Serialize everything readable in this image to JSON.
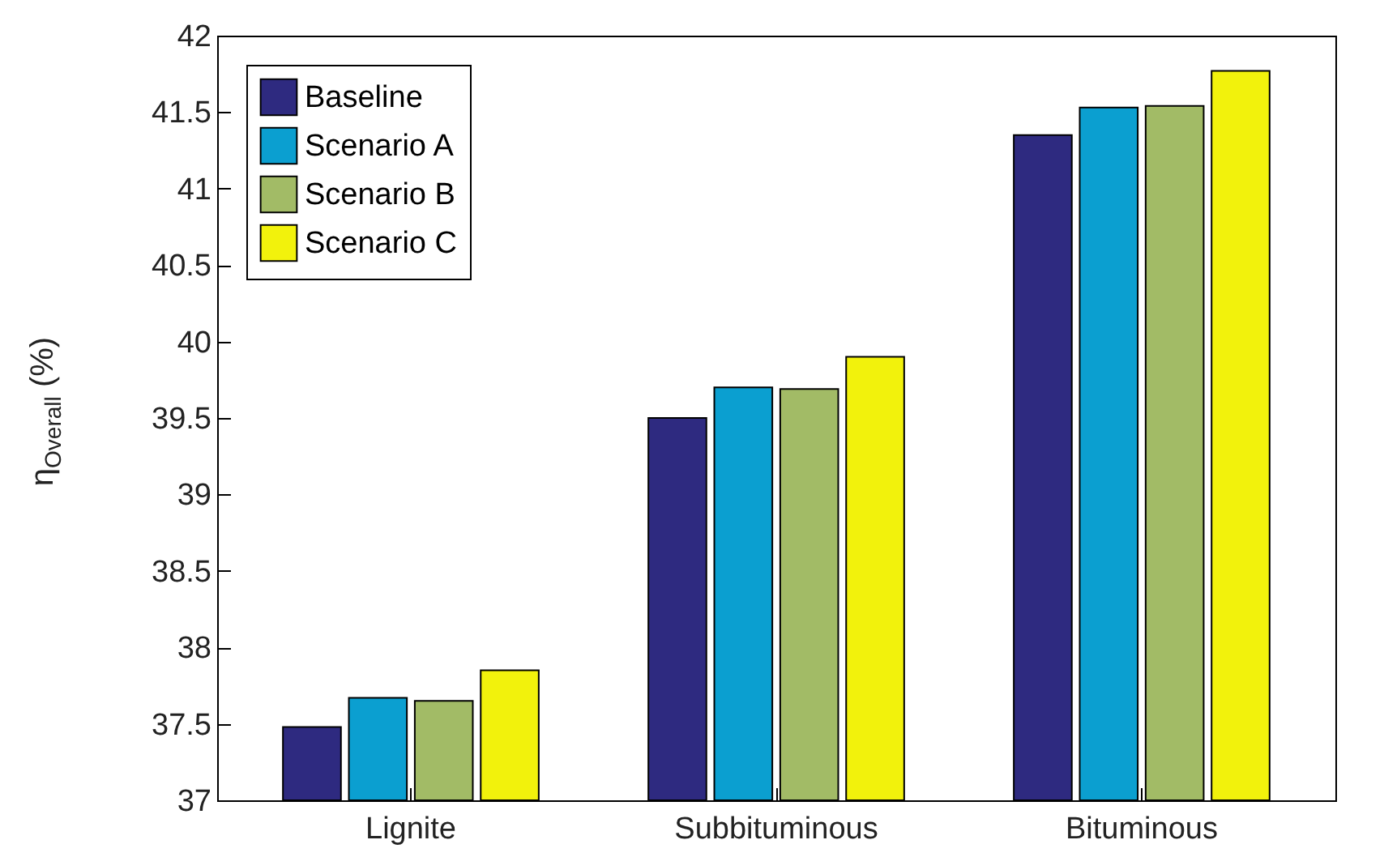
{
  "chart_data": {
    "type": "bar",
    "ylabel": "η$_{Overall}$ (%)",
    "categories": [
      "Lignite",
      "Subbituminous",
      "Bituminous"
    ],
    "series": [
      {
        "name": "Baseline",
        "color": "#2e2a80",
        "values": [
          37.48,
          39.5,
          41.35
        ]
      },
      {
        "name": "Scenario A",
        "color": "#0b9fd0",
        "values": [
          37.67,
          39.7,
          41.53
        ]
      },
      {
        "name": "Scenario B",
        "color": "#a2bb66",
        "values": [
          37.65,
          39.69,
          41.54
        ]
      },
      {
        "name": "Scenario C",
        "color": "#f2f20c",
        "values": [
          37.85,
          39.9,
          41.77
        ]
      }
    ],
    "ylim": [
      37,
      42
    ],
    "yticks": [
      37,
      37.5,
      38,
      38.5,
      39,
      39.5,
      40,
      40.5,
      41,
      41.5,
      42
    ],
    "grid": false,
    "legend": "top left"
  }
}
